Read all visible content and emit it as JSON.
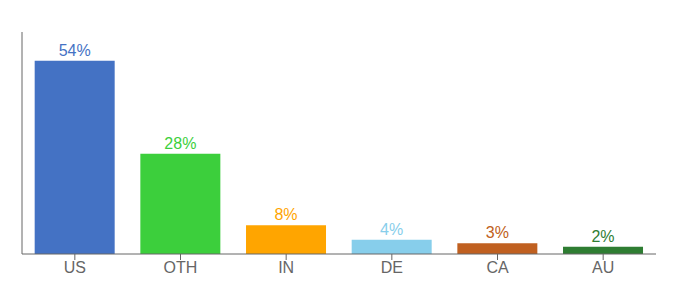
{
  "chart_data": {
    "type": "bar",
    "categories": [
      "US",
      "OTH",
      "IN",
      "DE",
      "CA",
      "AU"
    ],
    "values": [
      54,
      28,
      8,
      4,
      3,
      2
    ],
    "value_labels": [
      "54%",
      "28%",
      "8%",
      "4%",
      "3%",
      "2%"
    ],
    "data_labels": true,
    "colors": [
      "#4472C4",
      "#3CCF3C",
      "#FFA500",
      "#87CEEB",
      "#C06020",
      "#2E7D32"
    ],
    "ylim": [
      0,
      62
    ],
    "tick_labels": "x"
  }
}
